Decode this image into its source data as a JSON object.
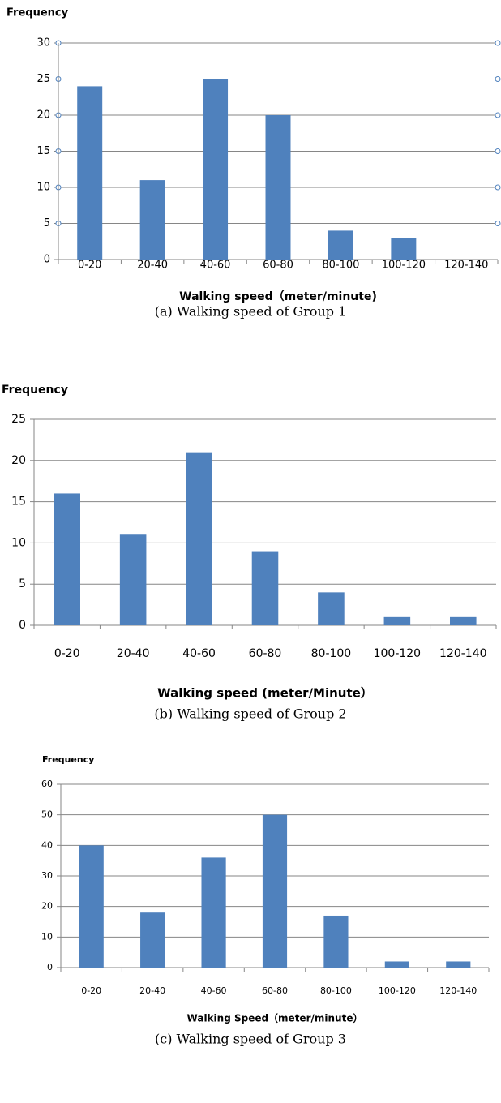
{
  "chart_data": [
    {
      "type": "bar",
      "ylabel": "Frequency",
      "xlabel": "Walking speed（meter/minute)",
      "caption": "(a) Walking speed of Group 1",
      "categories": [
        "0-20",
        "20-40",
        "40-60",
        "60-80",
        "80-100",
        "100-120",
        "120-140"
      ],
      "values": [
        24,
        11,
        25,
        20,
        4,
        3,
        0
      ],
      "color": "#4f81bd",
      "ylim": [
        0,
        30
      ],
      "yticks": [
        0,
        5,
        10,
        15,
        20,
        25,
        30
      ],
      "grid": true
    },
    {
      "type": "bar",
      "ylabel": "Frequency",
      "xlabel": "Walking speed (meter/Minute）",
      "caption": "(b) Walking speed of Group 2",
      "categories": [
        "0-20",
        "20-40",
        "40-60",
        "60-80",
        "80-100",
        "100-120",
        "120-140"
      ],
      "values": [
        16,
        11,
        21,
        9,
        4,
        1,
        1
      ],
      "color": "#4f81bd",
      "ylim": [
        0,
        25
      ],
      "yticks": [
        0,
        5,
        10,
        15,
        20,
        25
      ],
      "grid": true
    },
    {
      "type": "bar",
      "ylabel": "Frequency",
      "xlabel": "Walking Speed（meter/minute）",
      "caption": "(c) Walking speed of Group 3",
      "categories": [
        "0-20",
        "20-40",
        "40-60",
        "60-80",
        "80-100",
        "100-120",
        "120-140"
      ],
      "values": [
        40,
        18,
        36,
        50,
        17,
        2,
        2
      ],
      "color": "#4f81bd",
      "ylim": [
        0,
        60
      ],
      "yticks": [
        0,
        10,
        20,
        30,
        40,
        50,
        60
      ],
      "grid": true
    }
  ]
}
